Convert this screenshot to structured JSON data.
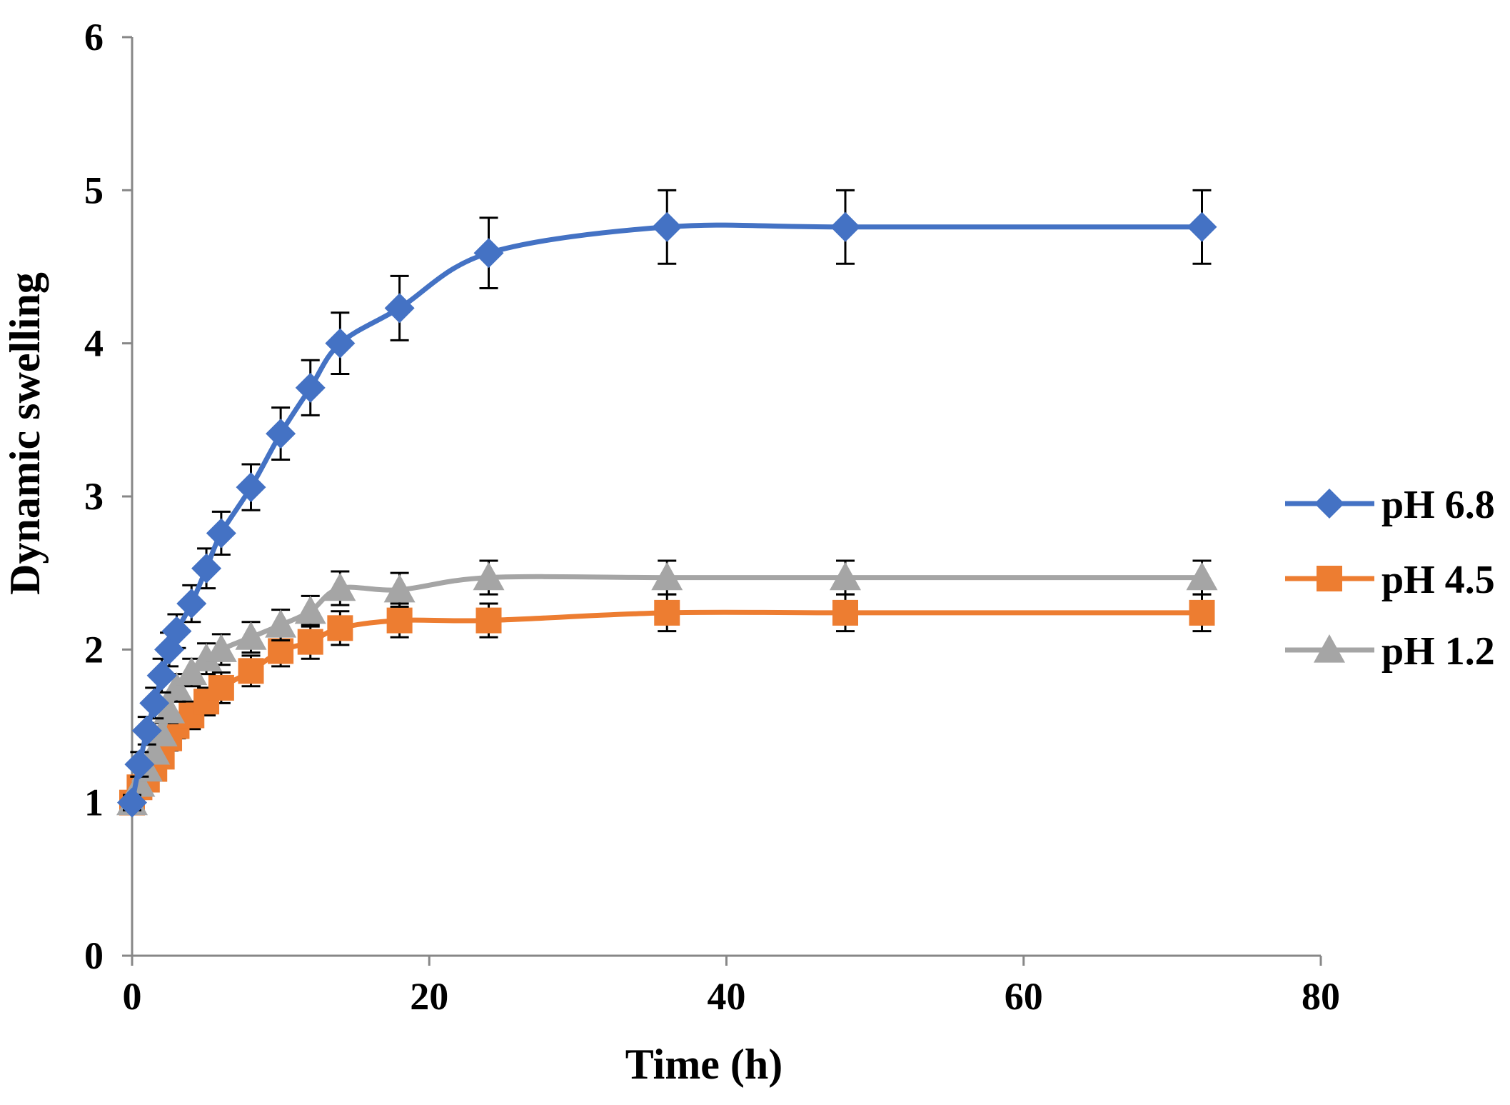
{
  "chart_data": {
    "type": "line",
    "title": "",
    "xlabel": "Time (h)",
    "ylabel": "Dynamic swelling",
    "xlim": [
      0,
      80
    ],
    "ylim": [
      0,
      6
    ],
    "xticks": [
      0,
      20,
      40,
      60,
      80
    ],
    "yticks": [
      0,
      1,
      2,
      3,
      4,
      5,
      6
    ],
    "xtick_labels": [
      "0",
      "20",
      "40",
      "60",
      "80"
    ],
    "ytick_labels": [
      "0",
      "1",
      "2",
      "3",
      "4",
      "5",
      "6"
    ],
    "grid": false,
    "legend_position": "right",
    "series": [
      {
        "name": "pH 6.8",
        "color": "#4472C4",
        "marker": "diamond",
        "x": [
          0,
          0.5,
          1,
          1.5,
          2,
          2.5,
          3,
          4,
          5,
          6,
          8,
          10,
          12,
          14,
          18,
          24,
          36,
          48,
          72
        ],
        "y": [
          1.0,
          1.25,
          1.47,
          1.65,
          1.83,
          2.0,
          2.12,
          2.3,
          2.53,
          2.76,
          3.06,
          3.41,
          3.71,
          4.0,
          4.23,
          4.59,
          4.76,
          4.76,
          4.76
        ],
        "error": [
          0.05,
          0.08,
          0.09,
          0.1,
          0.11,
          0.11,
          0.11,
          0.12,
          0.13,
          0.14,
          0.15,
          0.17,
          0.18,
          0.2,
          0.21,
          0.23,
          0.24,
          0.24,
          0.24
        ]
      },
      {
        "name": "pH 4.5",
        "color": "#ED7D31",
        "marker": "square",
        "x": [
          0,
          0.5,
          1,
          1.5,
          2,
          2.5,
          3,
          4,
          5,
          6,
          8,
          10,
          12,
          14,
          18,
          24,
          36,
          48,
          72
        ],
        "y": [
          1.0,
          1.1,
          1.15,
          1.22,
          1.3,
          1.42,
          1.5,
          1.57,
          1.66,
          1.75,
          1.86,
          1.99,
          2.05,
          2.14,
          2.19,
          2.19,
          2.24,
          2.24,
          2.24
        ],
        "error": [
          0.03,
          0.05,
          0.05,
          0.06,
          0.07,
          0.08,
          0.08,
          0.09,
          0.09,
          0.1,
          0.1,
          0.1,
          0.11,
          0.11,
          0.11,
          0.11,
          0.12,
          0.12,
          0.12
        ]
      },
      {
        "name": "pH 1.2",
        "color": "#A5A5A5",
        "marker": "triangle",
        "x": [
          0,
          0.5,
          1,
          1.5,
          2,
          2.5,
          3,
          4,
          5,
          6,
          8,
          10,
          12,
          14,
          18,
          24,
          36,
          48,
          72
        ],
        "y": [
          1.0,
          1.12,
          1.22,
          1.33,
          1.45,
          1.6,
          1.75,
          1.85,
          1.94,
          2.0,
          2.08,
          2.16,
          2.25,
          2.4,
          2.39,
          2.47,
          2.47,
          2.47,
          2.47
        ],
        "error": [
          0.03,
          0.05,
          0.06,
          0.07,
          0.07,
          0.08,
          0.09,
          0.09,
          0.1,
          0.1,
          0.1,
          0.1,
          0.1,
          0.11,
          0.11,
          0.11,
          0.11,
          0.11,
          0.11
        ]
      }
    ]
  }
}
